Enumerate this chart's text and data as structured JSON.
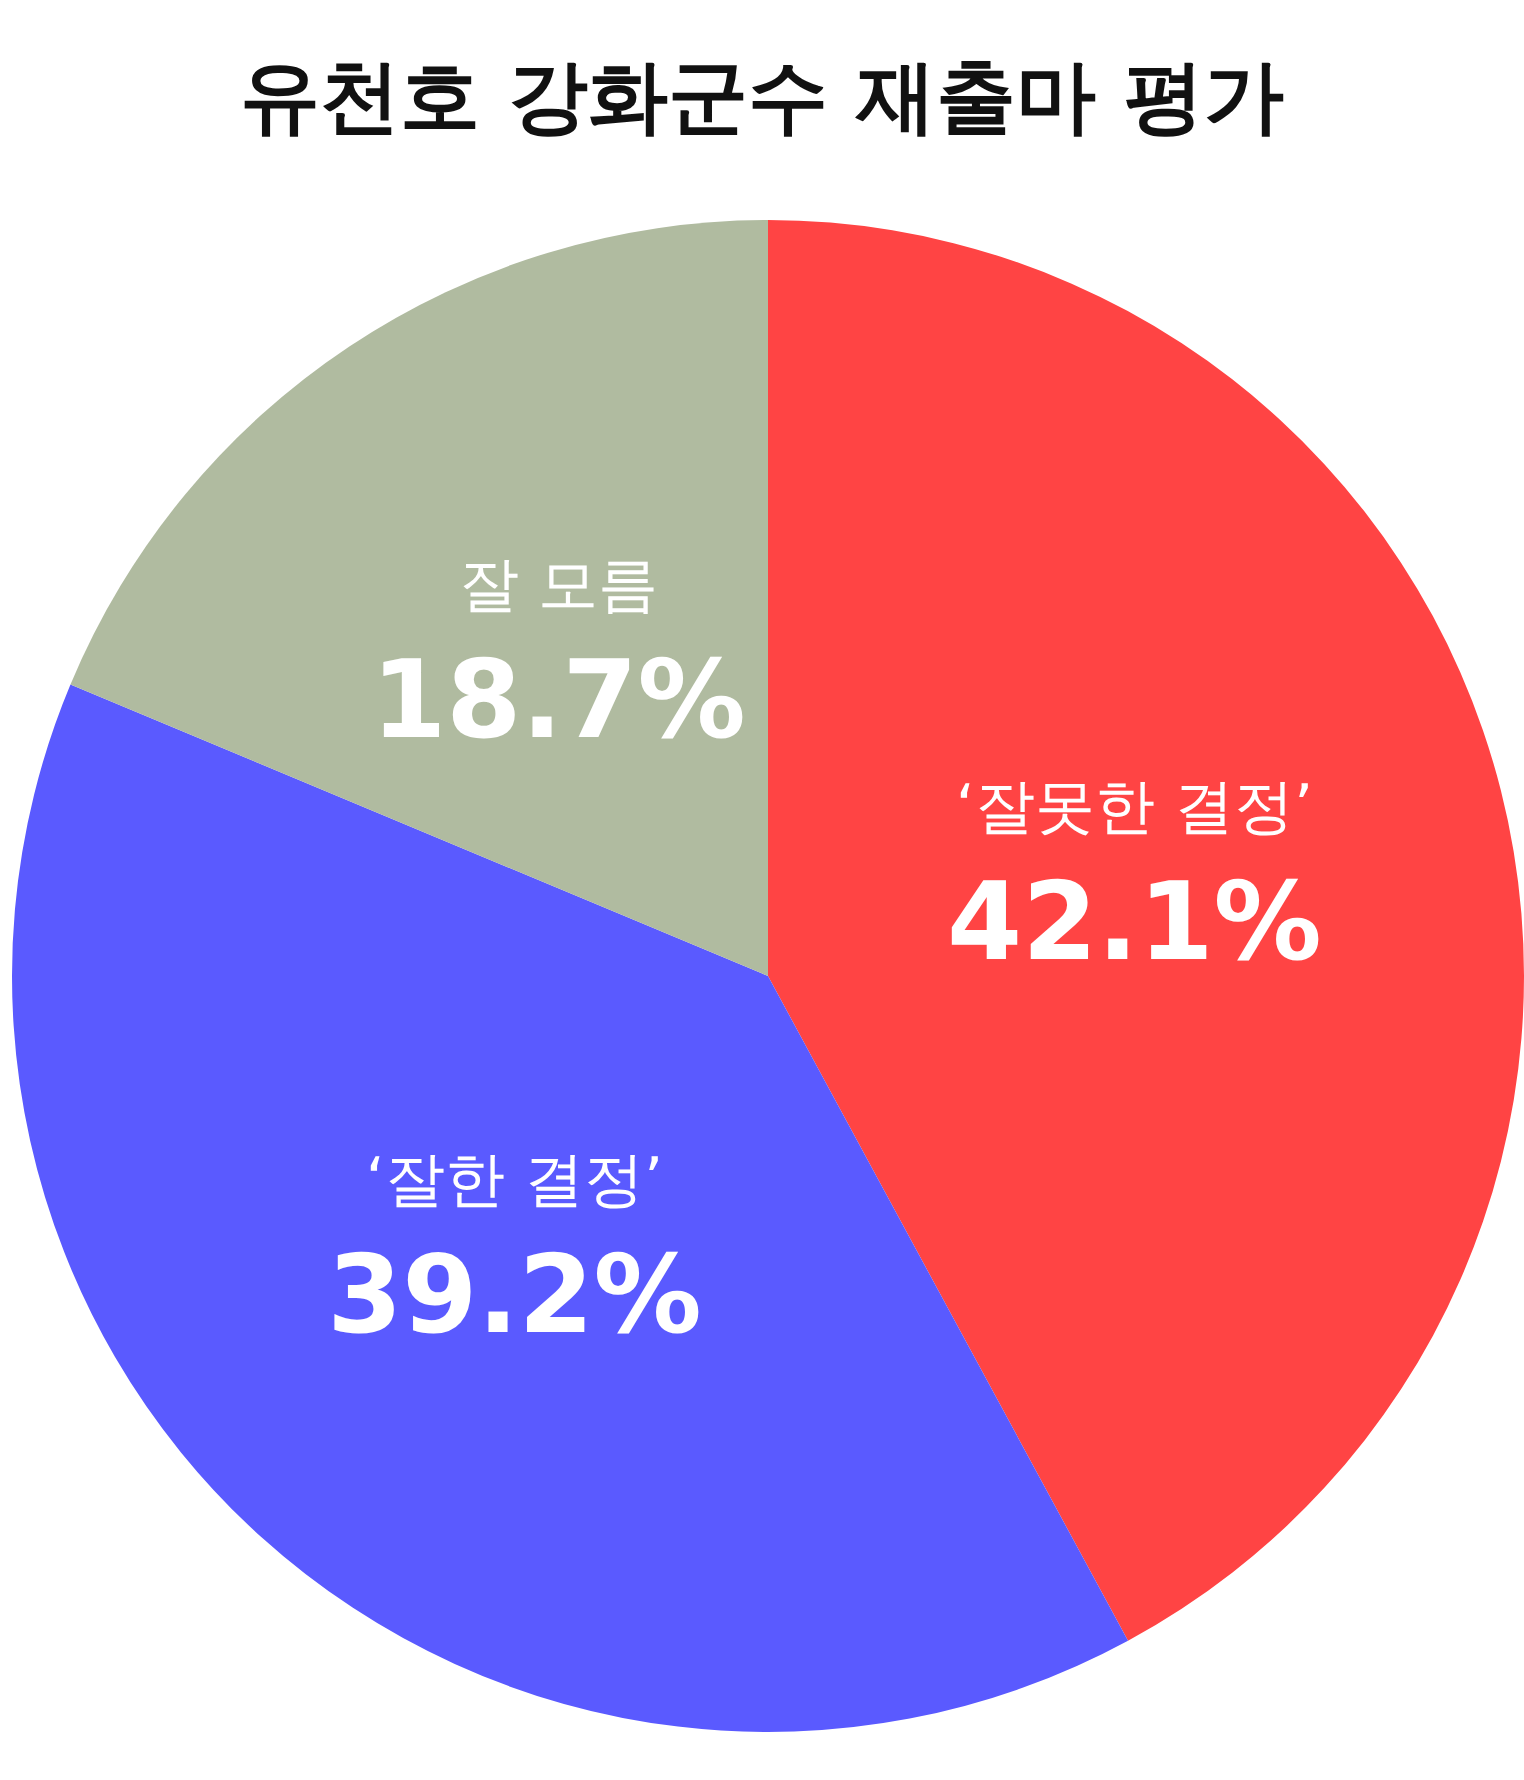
{
  "chart_data": {
    "type": "pie",
    "title": "유천호 강화군수 재출마 평가",
    "categories": [
      "‘잘못한 결정’",
      "‘잘한 결정’",
      "잘 모름"
    ],
    "values": [
      42.1,
      39.2,
      18.7
    ],
    "value_labels": [
      "42.1%",
      "39.2%",
      "18.7%"
    ],
    "colors": [
      "#ff4444",
      "#5a5aff",
      "#b0bba0"
    ]
  }
}
